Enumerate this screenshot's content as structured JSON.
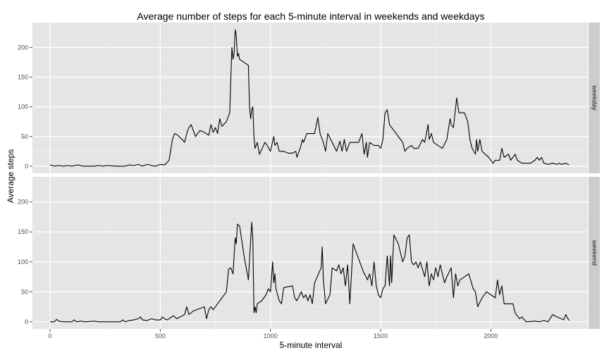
{
  "chart_data": {
    "type": "line",
    "title": "Average number of steps for each 5-minute interval in weekends and weekdays",
    "xlabel": "5-minute interval",
    "ylabel": "Average steps",
    "xlim": [
      -80,
      2440
    ],
    "ylim": [
      -12,
      242
    ],
    "x_ticks": [
      0,
      500,
      1000,
      1500,
      2000
    ],
    "y_ticks": [
      0,
      50,
      100,
      150,
      200
    ],
    "grid": true,
    "facet_strip_position": "right",
    "panels": [
      {
        "label": "weekday",
        "points": [
          [
            0,
            2
          ],
          [
            20,
            0
          ],
          [
            40,
            1
          ],
          [
            60,
            0
          ],
          [
            80,
            1
          ],
          [
            100,
            0
          ],
          [
            125,
            2
          ],
          [
            150,
            0
          ],
          [
            200,
            0
          ],
          [
            220,
            1
          ],
          [
            240,
            0
          ],
          [
            260,
            1
          ],
          [
            300,
            0
          ],
          [
            340,
            0
          ],
          [
            360,
            2
          ],
          [
            380,
            1
          ],
          [
            400,
            3
          ],
          [
            420,
            0
          ],
          [
            440,
            3
          ],
          [
            460,
            1
          ],
          [
            480,
            0
          ],
          [
            500,
            3
          ],
          [
            520,
            2
          ],
          [
            540,
            10
          ],
          [
            555,
            45
          ],
          [
            565,
            55
          ],
          [
            580,
            52
          ],
          [
            590,
            48
          ],
          [
            600,
            45
          ],
          [
            610,
            40
          ],
          [
            620,
            55
          ],
          [
            630,
            65
          ],
          [
            640,
            70
          ],
          [
            650,
            60
          ],
          [
            660,
            50
          ],
          [
            670,
            55
          ],
          [
            680,
            60
          ],
          [
            700,
            57
          ],
          [
            720,
            52
          ],
          [
            730,
            70
          ],
          [
            740,
            57
          ],
          [
            750,
            65
          ],
          [
            760,
            55
          ],
          [
            770,
            80
          ],
          [
            780,
            67
          ],
          [
            800,
            75
          ],
          [
            815,
            90
          ],
          [
            820,
            145
          ],
          [
            825,
            200
          ],
          [
            830,
            180
          ],
          [
            835,
            190
          ],
          [
            840,
            230
          ],
          [
            845,
            220
          ],
          [
            850,
            185
          ],
          [
            855,
            190
          ],
          [
            860,
            180
          ],
          [
            880,
            175
          ],
          [
            900,
            170
          ],
          [
            905,
            100
          ],
          [
            910,
            80
          ],
          [
            915,
            95
          ],
          [
            920,
            100
          ],
          [
            925,
            50
          ],
          [
            930,
            30
          ],
          [
            940,
            40
          ],
          [
            950,
            20
          ],
          [
            975,
            40
          ],
          [
            985,
            35
          ],
          [
            1000,
            25
          ],
          [
            1015,
            50
          ],
          [
            1020,
            35
          ],
          [
            1030,
            40
          ],
          [
            1040,
            25
          ],
          [
            1060,
            25
          ],
          [
            1080,
            22
          ],
          [
            1100,
            22
          ],
          [
            1115,
            25
          ],
          [
            1120,
            15
          ],
          [
            1135,
            30
          ],
          [
            1145,
            45
          ],
          [
            1150,
            40
          ],
          [
            1165,
            55
          ],
          [
            1200,
            55
          ],
          [
            1215,
            82
          ],
          [
            1225,
            55
          ],
          [
            1240,
            40
          ],
          [
            1250,
            25
          ],
          [
            1260,
            55
          ],
          [
            1300,
            25
          ],
          [
            1315,
            42
          ],
          [
            1325,
            25
          ],
          [
            1335,
            45
          ],
          [
            1345,
            25
          ],
          [
            1360,
            40
          ],
          [
            1400,
            40
          ],
          [
            1415,
            55
          ],
          [
            1425,
            20
          ],
          [
            1435,
            40
          ],
          [
            1440,
            15
          ],
          [
            1450,
            40
          ],
          [
            1470,
            35
          ],
          [
            1490,
            35
          ],
          [
            1500,
            30
          ],
          [
            1510,
            45
          ],
          [
            1520,
            90
          ],
          [
            1530,
            95
          ],
          [
            1540,
            70
          ],
          [
            1590,
            45
          ],
          [
            1600,
            40
          ],
          [
            1610,
            25
          ],
          [
            1620,
            30
          ],
          [
            1640,
            35
          ],
          [
            1650,
            30
          ],
          [
            1670,
            30
          ],
          [
            1690,
            45
          ],
          [
            1700,
            40
          ],
          [
            1715,
            70
          ],
          [
            1720,
            45
          ],
          [
            1730,
            55
          ],
          [
            1740,
            40
          ],
          [
            1760,
            35
          ],
          [
            1780,
            30
          ],
          [
            1800,
            45
          ],
          [
            1815,
            80
          ],
          [
            1820,
            70
          ],
          [
            1830,
            65
          ],
          [
            1845,
            115
          ],
          [
            1855,
            90
          ],
          [
            1880,
            90
          ],
          [
            1895,
            75
          ],
          [
            1905,
            45
          ],
          [
            1915,
            30
          ],
          [
            1930,
            20
          ],
          [
            1935,
            45
          ],
          [
            1940,
            25
          ],
          [
            1950,
            45
          ],
          [
            1960,
            25
          ],
          [
            1990,
            15
          ],
          [
            2010,
            5
          ],
          [
            2020,
            10
          ],
          [
            2040,
            10
          ],
          [
            2050,
            30
          ],
          [
            2060,
            15
          ],
          [
            2080,
            20
          ],
          [
            2090,
            10
          ],
          [
            2100,
            15
          ],
          [
            2110,
            20
          ],
          [
            2120,
            10
          ],
          [
            2140,
            5
          ],
          [
            2160,
            5
          ],
          [
            2180,
            5
          ],
          [
            2200,
            10
          ],
          [
            2210,
            15
          ],
          [
            2220,
            10
          ],
          [
            2230,
            15
          ],
          [
            2240,
            5
          ],
          [
            2260,
            3
          ],
          [
            2280,
            5
          ],
          [
            2300,
            3
          ],
          [
            2310,
            5
          ],
          [
            2320,
            3
          ],
          [
            2340,
            5
          ],
          [
            2355,
            2
          ]
        ]
      },
      {
        "label": "weekend",
        "points": [
          [
            0,
            0
          ],
          [
            20,
            0
          ],
          [
            30,
            4
          ],
          [
            40,
            1
          ],
          [
            60,
            0
          ],
          [
            80,
            0
          ],
          [
            100,
            0
          ],
          [
            110,
            3
          ],
          [
            120,
            0
          ],
          [
            140,
            1
          ],
          [
            160,
            0
          ],
          [
            200,
            1
          ],
          [
            220,
            0
          ],
          [
            240,
            0
          ],
          [
            260,
            0
          ],
          [
            300,
            0
          ],
          [
            320,
            0
          ],
          [
            330,
            3
          ],
          [
            340,
            0
          ],
          [
            360,
            2
          ],
          [
            380,
            3
          ],
          [
            400,
            5
          ],
          [
            410,
            8
          ],
          [
            420,
            3
          ],
          [
            440,
            2
          ],
          [
            460,
            5
          ],
          [
            480,
            3
          ],
          [
            500,
            3
          ],
          [
            510,
            8
          ],
          [
            520,
            5
          ],
          [
            530,
            3
          ],
          [
            540,
            5
          ],
          [
            560,
            10
          ],
          [
            575,
            5
          ],
          [
            600,
            10
          ],
          [
            610,
            12
          ],
          [
            620,
            25
          ],
          [
            630,
            12
          ],
          [
            650,
            18
          ],
          [
            700,
            25
          ],
          [
            710,
            5
          ],
          [
            720,
            20
          ],
          [
            730,
            25
          ],
          [
            740,
            20
          ],
          [
            760,
            30
          ],
          [
            780,
            40
          ],
          [
            800,
            50
          ],
          [
            810,
            88
          ],
          [
            820,
            90
          ],
          [
            830,
            80
          ],
          [
            840,
            140
          ],
          [
            845,
            130
          ],
          [
            850,
            163
          ],
          [
            860,
            160
          ],
          [
            870,
            135
          ],
          [
            880,
            110
          ],
          [
            900,
            70
          ],
          [
            915,
            166
          ],
          [
            920,
            140
          ],
          [
            925,
            15
          ],
          [
            930,
            25
          ],
          [
            935,
            15
          ],
          [
            940,
            30
          ],
          [
            960,
            35
          ],
          [
            980,
            45
          ],
          [
            990,
            55
          ],
          [
            1000,
            50
          ],
          [
            1010,
            100
          ],
          [
            1015,
            65
          ],
          [
            1020,
            80
          ],
          [
            1025,
            55
          ],
          [
            1040,
            35
          ],
          [
            1050,
            30
          ],
          [
            1060,
            57
          ],
          [
            1100,
            60
          ],
          [
            1110,
            40
          ],
          [
            1120,
            35
          ],
          [
            1140,
            50
          ],
          [
            1150,
            40
          ],
          [
            1160,
            45
          ],
          [
            1170,
            35
          ],
          [
            1180,
            45
          ],
          [
            1190,
            30
          ],
          [
            1200,
            65
          ],
          [
            1230,
            90
          ],
          [
            1235,
            125
          ],
          [
            1240,
            70
          ],
          [
            1250,
            30
          ],
          [
            1270,
            45
          ],
          [
            1280,
            90
          ],
          [
            1300,
            85
          ],
          [
            1310,
            95
          ],
          [
            1320,
            80
          ],
          [
            1330,
            90
          ],
          [
            1340,
            60
          ],
          [
            1350,
            95
          ],
          [
            1360,
            30
          ],
          [
            1375,
            130
          ],
          [
            1420,
            85
          ],
          [
            1440,
            70
          ],
          [
            1450,
            80
          ],
          [
            1460,
            60
          ],
          [
            1470,
            100
          ],
          [
            1480,
            60
          ],
          [
            1490,
            45
          ],
          [
            1500,
            40
          ],
          [
            1510,
            55
          ],
          [
            1520,
            60
          ],
          [
            1530,
            110
          ],
          [
            1540,
            60
          ],
          [
            1545,
            110
          ],
          [
            1550,
            65
          ],
          [
            1560,
            145
          ],
          [
            1580,
            130
          ],
          [
            1600,
            100
          ],
          [
            1610,
            110
          ],
          [
            1620,
            140
          ],
          [
            1630,
            145
          ],
          [
            1640,
            100
          ],
          [
            1650,
            95
          ],
          [
            1660,
            100
          ],
          [
            1670,
            90
          ],
          [
            1680,
            100
          ],
          [
            1700,
            75
          ],
          [
            1710,
            100
          ],
          [
            1720,
            60
          ],
          [
            1730,
            80
          ],
          [
            1740,
            70
          ],
          [
            1750,
            90
          ],
          [
            1760,
            75
          ],
          [
            1770,
            95
          ],
          [
            1780,
            80
          ],
          [
            1790,
            65
          ],
          [
            1800,
            75
          ],
          [
            1820,
            90
          ],
          [
            1830,
            40
          ],
          [
            1840,
            80
          ],
          [
            1850,
            60
          ],
          [
            1860,
            70
          ],
          [
            1900,
            80
          ],
          [
            1920,
            55
          ],
          [
            1930,
            50
          ],
          [
            1940,
            25
          ],
          [
            1960,
            40
          ],
          [
            1980,
            50
          ],
          [
            2000,
            45
          ],
          [
            2020,
            40
          ],
          [
            2030,
            70
          ],
          [
            2040,
            45
          ],
          [
            2050,
            60
          ],
          [
            2060,
            30
          ],
          [
            2100,
            30
          ],
          [
            2110,
            15
          ],
          [
            2120,
            10
          ],
          [
            2130,
            5
          ],
          [
            2140,
            8
          ],
          [
            2160,
            0
          ],
          [
            2200,
            1
          ],
          [
            2220,
            0
          ],
          [
            2240,
            2
          ],
          [
            2260,
            0
          ],
          [
            2280,
            12
          ],
          [
            2300,
            8
          ],
          [
            2320,
            5
          ],
          [
            2330,
            3
          ],
          [
            2340,
            12
          ],
          [
            2345,
            8
          ],
          [
            2355,
            2
          ]
        ]
      }
    ]
  }
}
